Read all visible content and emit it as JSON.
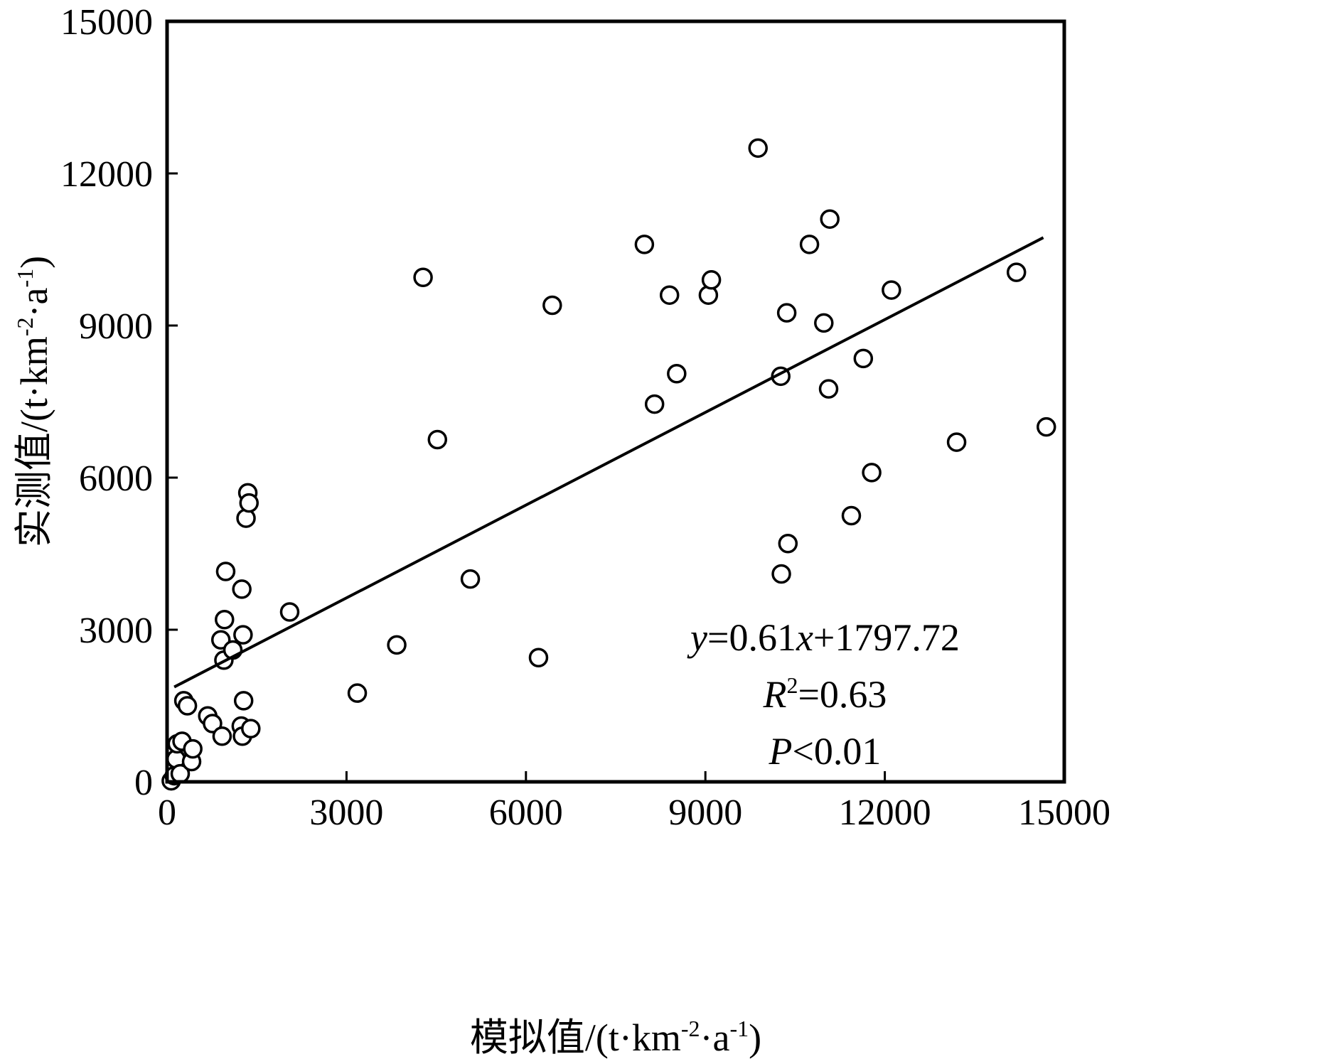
{
  "chart_data": {
    "type": "scatter",
    "xlabel": {
      "prefix": "模拟值/(t·km",
      "sup1": "-2",
      "mid": "·a",
      "sup2": "-1",
      "suffix": ")"
    },
    "ylabel": {
      "prefix": "实测值/(t·km",
      "sup1": "-2",
      "mid": "·a",
      "sup2": "-1",
      "suffix": ")"
    },
    "xlim": [
      0,
      15000
    ],
    "ylim": [
      0,
      15000
    ],
    "xticks": [
      "0",
      "3000",
      "6000",
      "9000",
      "12000",
      "15000"
    ],
    "yticks": [
      "0",
      "3000",
      "6000",
      "9000",
      "12000",
      "15000"
    ],
    "grid": false,
    "fit_line": {
      "slope": 0.61,
      "intercept": 1797.72,
      "x_range": [
        120,
        14650
      ]
    },
    "annotations": {
      "equation": {
        "var_y": "y",
        "mid": "=0.61",
        "var_x": "x",
        "end": "+1797.72"
      },
      "r2": {
        "var": "R",
        "sup": "2",
        "end": "=0.63"
      },
      "p": {
        "var": "P",
        "end": "<0.01"
      }
    },
    "points": [
      [
        70,
        20
      ],
      [
        120,
        120
      ],
      [
        150,
        450
      ],
      [
        170,
        750
      ],
      [
        220,
        160
      ],
      [
        250,
        800
      ],
      [
        280,
        1600
      ],
      [
        340,
        1500
      ],
      [
        410,
        400
      ],
      [
        430,
        650
      ],
      [
        680,
        1300
      ],
      [
        760,
        1150
      ],
      [
        900,
        2800
      ],
      [
        920,
        900
      ],
      [
        950,
        2400
      ],
      [
        960,
        3200
      ],
      [
        980,
        4150
      ],
      [
        1100,
        2600
      ],
      [
        1240,
        1100
      ],
      [
        1250,
        3800
      ],
      [
        1260,
        900
      ],
      [
        1270,
        2900
      ],
      [
        1280,
        1600
      ],
      [
        1320,
        5200
      ],
      [
        1350,
        5700
      ],
      [
        1370,
        5500
      ],
      [
        1400,
        1050
      ],
      [
        2050,
        3350
      ],
      [
        3180,
        1750
      ],
      [
        3840,
        2700
      ],
      [
        4280,
        9950
      ],
      [
        4520,
        6750
      ],
      [
        5070,
        4000
      ],
      [
        6210,
        2450
      ],
      [
        6440,
        9400
      ],
      [
        7980,
        10600
      ],
      [
        8150,
        7450
      ],
      [
        8400,
        9600
      ],
      [
        8520,
        8050
      ],
      [
        9050,
        9600
      ],
      [
        9100,
        9900
      ],
      [
        9880,
        12500
      ],
      [
        10260,
        8000
      ],
      [
        10270,
        4100
      ],
      [
        10360,
        9250
      ],
      [
        10380,
        4700
      ],
      [
        10740,
        10600
      ],
      [
        10980,
        9050
      ],
      [
        11060,
        7750
      ],
      [
        11080,
        11100
      ],
      [
        11440,
        5250
      ],
      [
        11640,
        8350
      ],
      [
        11780,
        6100
      ],
      [
        12110,
        9700
      ],
      [
        13200,
        6700
      ],
      [
        14200,
        10050
      ],
      [
        14700,
        7000
      ]
    ]
  }
}
